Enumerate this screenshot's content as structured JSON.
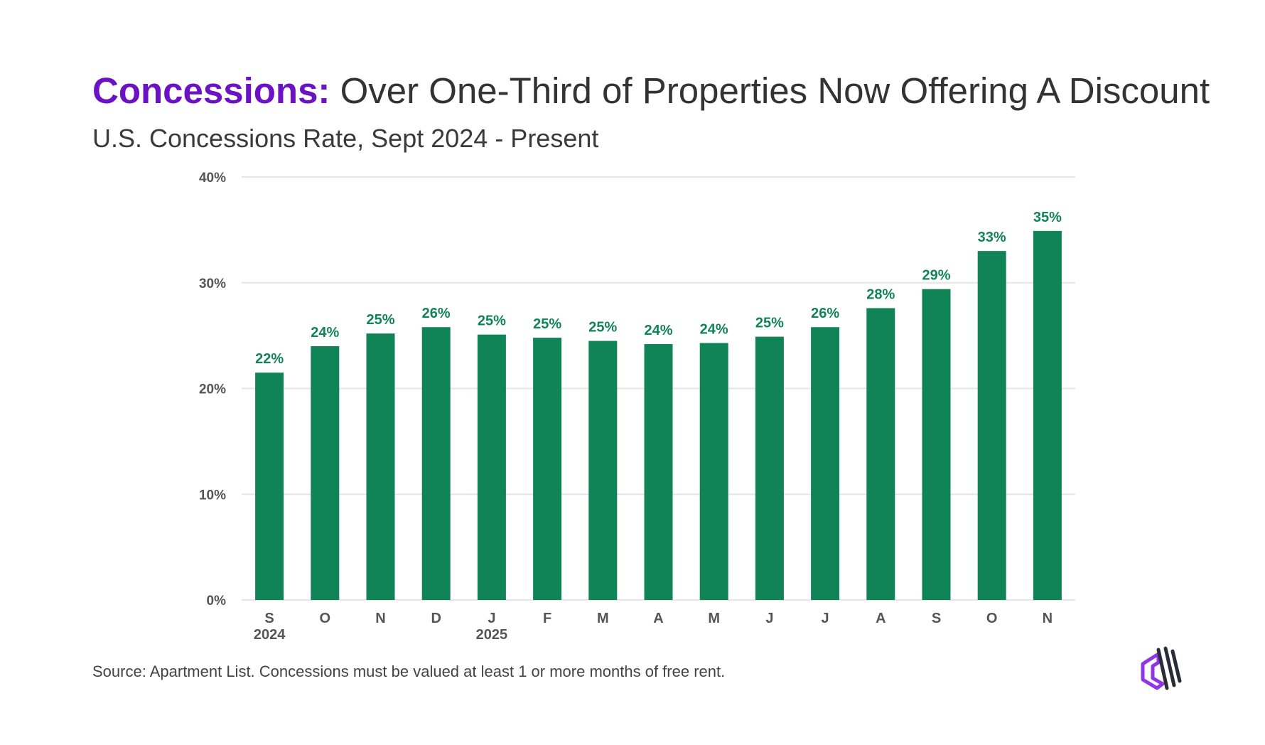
{
  "header": {
    "title_accent": "Concessions:",
    "title_rest": " Over One-Third of Properties Now Offering A Discount",
    "subtitle": "U.S. Concessions Rate, Sept 2024 - Present"
  },
  "footer": {
    "source": "Source: Apartment List. Concessions must be valued at least 1 or more months of free rent."
  },
  "colors": {
    "accent": "#6a12c4",
    "bar": "#118457",
    "data_label": "#118457",
    "grid": "#e6e6e6",
    "logo_primary": "#2b2b3a",
    "logo_accent": "#8e35e6"
  },
  "logo": {
    "icon": "apartment-list-logo-icon"
  },
  "chart_data": {
    "type": "bar",
    "title": "Concessions: Over One-Third of Properties Now Offering A Discount",
    "subtitle": "U.S. Concessions Rate, Sept 2024 - Present",
    "xlabel": "",
    "ylabel": "",
    "categories": [
      "S",
      "O",
      "N",
      "D",
      "J",
      "F",
      "M",
      "A",
      "M",
      "J",
      "J",
      "A",
      "S",
      "O",
      "N"
    ],
    "year_labels": [
      "2024",
      "",
      "",
      "",
      "2025",
      "",
      "",
      "",
      "",
      "",
      "",
      "",
      "",
      "",
      ""
    ],
    "values": [
      21.5,
      24.0,
      25.2,
      25.8,
      25.1,
      24.8,
      24.5,
      24.2,
      24.3,
      24.9,
      25.8,
      27.6,
      29.4,
      33.0,
      34.9
    ],
    "data_labels": [
      "22%",
      "24%",
      "25%",
      "26%",
      "25%",
      "25%",
      "25%",
      "24%",
      "24%",
      "25%",
      "26%",
      "28%",
      "29%",
      "33%",
      "35%"
    ],
    "ylim": [
      0,
      40
    ],
    "yticks": [
      0,
      10,
      20,
      30,
      40
    ],
    "ytick_labels": [
      "0%",
      "10%",
      "20%",
      "30%",
      "40%"
    ],
    "grid": true,
    "legend": "none"
  }
}
